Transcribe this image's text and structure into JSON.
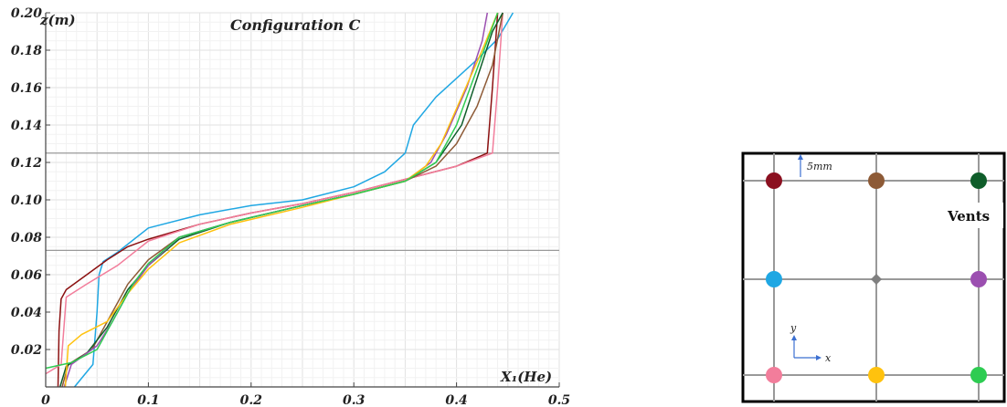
{
  "chart_data": {
    "type": "line",
    "title": "Configuration C",
    "xlabel": "X₁(He)",
    "ylabel": "z(m)",
    "xlim": [
      0,
      0.5
    ],
    "ylim": [
      0,
      0.2
    ],
    "xticks": [
      "0",
      "0.1",
      "0.2",
      "0.3",
      "0.4",
      "0.5"
    ],
    "yticks": [
      "0.02",
      "0.04",
      "0.06",
      "0.08",
      "0.10",
      "0.12",
      "0.14",
      "0.16",
      "0.18",
      "0.20"
    ],
    "grid": true,
    "reference_lines_y": [
      0.125,
      0.073
    ],
    "series": [
      {
        "color": "#1fa7e3",
        "points": [
          [
            0.028,
            0.0
          ],
          [
            0.046,
            0.012
          ],
          [
            0.05,
            0.04
          ],
          [
            0.052,
            0.06
          ],
          [
            0.056,
            0.067
          ],
          [
            0.07,
            0.072
          ],
          [
            0.1,
            0.085
          ],
          [
            0.15,
            0.092
          ],
          [
            0.2,
            0.097
          ],
          [
            0.25,
            0.1
          ],
          [
            0.3,
            0.107
          ],
          [
            0.33,
            0.115
          ],
          [
            0.35,
            0.125
          ],
          [
            0.358,
            0.14
          ],
          [
            0.38,
            0.155
          ],
          [
            0.4,
            0.165
          ],
          [
            0.42,
            0.175
          ],
          [
            0.44,
            0.186
          ],
          [
            0.455,
            0.2
          ]
        ]
      },
      {
        "color": "#8b1010",
        "points": [
          [
            0.012,
            0.0
          ],
          [
            0.013,
            0.03
          ],
          [
            0.015,
            0.047
          ],
          [
            0.02,
            0.052
          ],
          [
            0.04,
            0.06
          ],
          [
            0.06,
            0.068
          ],
          [
            0.08,
            0.075
          ],
          [
            0.1,
            0.079
          ],
          [
            0.15,
            0.087
          ],
          [
            0.2,
            0.093
          ],
          [
            0.25,
            0.098
          ],
          [
            0.3,
            0.104
          ],
          [
            0.35,
            0.111
          ],
          [
            0.4,
            0.118
          ],
          [
            0.43,
            0.125
          ],
          [
            0.435,
            0.16
          ],
          [
            0.44,
            0.2
          ]
        ]
      },
      {
        "color": "#f27d9b",
        "points": [
          [
            0.0,
            0.007
          ],
          [
            0.015,
            0.012
          ],
          [
            0.02,
            0.048
          ],
          [
            0.04,
            0.055
          ],
          [
            0.07,
            0.065
          ],
          [
            0.1,
            0.078
          ],
          [
            0.15,
            0.087
          ],
          [
            0.2,
            0.093
          ],
          [
            0.25,
            0.098
          ],
          [
            0.3,
            0.104
          ],
          [
            0.35,
            0.111
          ],
          [
            0.4,
            0.118
          ],
          [
            0.435,
            0.125
          ],
          [
            0.44,
            0.16
          ],
          [
            0.445,
            0.2
          ]
        ]
      },
      {
        "color": "#8d5a36",
        "points": [
          [
            0.016,
            0.0
          ],
          [
            0.022,
            0.012
          ],
          [
            0.045,
            0.02
          ],
          [
            0.06,
            0.035
          ],
          [
            0.08,
            0.055
          ],
          [
            0.1,
            0.068
          ],
          [
            0.13,
            0.08
          ],
          [
            0.18,
            0.088
          ],
          [
            0.25,
            0.097
          ],
          [
            0.3,
            0.103
          ],
          [
            0.35,
            0.11
          ],
          [
            0.38,
            0.118
          ],
          [
            0.4,
            0.13
          ],
          [
            0.42,
            0.15
          ],
          [
            0.435,
            0.172
          ],
          [
            0.445,
            0.2
          ]
        ]
      },
      {
        "color": "#0f5d2a",
        "points": [
          [
            0.014,
            0.0
          ],
          [
            0.02,
            0.011
          ],
          [
            0.04,
            0.018
          ],
          [
            0.06,
            0.032
          ],
          [
            0.08,
            0.052
          ],
          [
            0.1,
            0.065
          ],
          [
            0.13,
            0.079
          ],
          [
            0.18,
            0.088
          ],
          [
            0.25,
            0.097
          ],
          [
            0.3,
            0.103
          ],
          [
            0.35,
            0.11
          ],
          [
            0.38,
            0.12
          ],
          [
            0.405,
            0.14
          ],
          [
            0.42,
            0.165
          ],
          [
            0.435,
            0.19
          ],
          [
            0.445,
            0.2
          ]
        ]
      },
      {
        "color": "#9b4fb0",
        "points": [
          [
            0.018,
            0.0
          ],
          [
            0.025,
            0.012
          ],
          [
            0.05,
            0.022
          ],
          [
            0.065,
            0.035
          ],
          [
            0.08,
            0.05
          ],
          [
            0.1,
            0.065
          ],
          [
            0.13,
            0.08
          ],
          [
            0.18,
            0.088
          ],
          [
            0.25,
            0.097
          ],
          [
            0.3,
            0.103
          ],
          [
            0.35,
            0.11
          ],
          [
            0.375,
            0.12
          ],
          [
            0.39,
            0.135
          ],
          [
            0.41,
            0.16
          ],
          [
            0.425,
            0.185
          ],
          [
            0.43,
            0.2
          ]
        ]
      },
      {
        "color": "#ffc20e",
        "points": [
          [
            0.019,
            0.0
          ],
          [
            0.022,
            0.022
          ],
          [
            0.035,
            0.028
          ],
          [
            0.06,
            0.035
          ],
          [
            0.08,
            0.05
          ],
          [
            0.1,
            0.063
          ],
          [
            0.13,
            0.077
          ],
          [
            0.18,
            0.087
          ],
          [
            0.25,
            0.096
          ],
          [
            0.3,
            0.103
          ],
          [
            0.35,
            0.11
          ],
          [
            0.37,
            0.118
          ],
          [
            0.385,
            0.13
          ],
          [
            0.405,
            0.155
          ],
          [
            0.425,
            0.18
          ],
          [
            0.44,
            0.2
          ]
        ]
      },
      {
        "color": "#2ecc52",
        "points": [
          [
            0.0,
            0.01
          ],
          [
            0.025,
            0.013
          ],
          [
            0.05,
            0.02
          ],
          [
            0.065,
            0.035
          ],
          [
            0.085,
            0.055
          ],
          [
            0.1,
            0.066
          ],
          [
            0.13,
            0.08
          ],
          [
            0.18,
            0.088
          ],
          [
            0.25,
            0.097
          ],
          [
            0.3,
            0.103
          ],
          [
            0.35,
            0.11
          ],
          [
            0.38,
            0.12
          ],
          [
            0.4,
            0.14
          ],
          [
            0.42,
            0.17
          ],
          [
            0.44,
            0.2
          ]
        ]
      }
    ]
  },
  "inset": {
    "vents_label": "Vents",
    "spacing_label": "5mm",
    "axis_x": "x",
    "axis_y": "y",
    "colors": {
      "top": [
        "#8b1020",
        "#8d5a36",
        "#0f5d2a"
      ],
      "middle": [
        "#1fa7e3",
        "#808080",
        "#9b4fb0"
      ],
      "bottom": [
        "#f27d9b",
        "#ffc20e",
        "#2ecc52"
      ]
    }
  }
}
